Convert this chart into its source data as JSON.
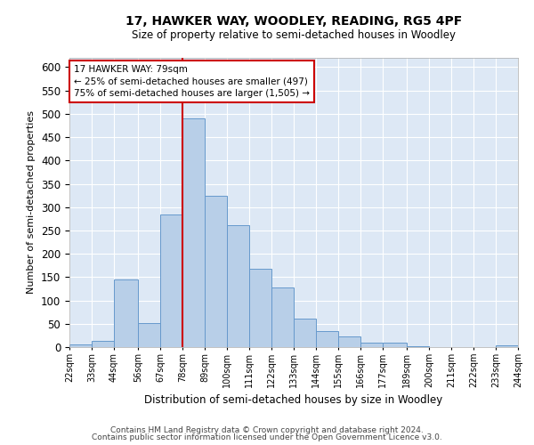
{
  "title": "17, HAWKER WAY, WOODLEY, READING, RG5 4PF",
  "subtitle": "Size of property relative to semi-detached houses in Woodley",
  "xlabel": "Distribution of semi-detached houses by size in Woodley",
  "ylabel": "Number of semi-detached properties",
  "annotation_title": "17 HAWKER WAY: 79sqm",
  "annotation_line1": "← 25% of semi-detached houses are smaller (497)",
  "annotation_line2": "75% of semi-detached houses are larger (1,505) →",
  "property_size": 79,
  "bin_starts": [
    22,
    33,
    44,
    56,
    67,
    78,
    89,
    100,
    111,
    122,
    133,
    144,
    155,
    166,
    177,
    189,
    200,
    211,
    222,
    233
  ],
  "bin_widths": [
    11,
    11,
    12,
    11,
    11,
    11,
    11,
    11,
    11,
    11,
    11,
    11,
    11,
    11,
    12,
    11,
    11,
    11,
    11,
    11
  ],
  "bin_labels": [
    "22sqm",
    "33sqm",
    "44sqm",
    "56sqm",
    "67sqm",
    "78sqm",
    "89sqm",
    "100sqm",
    "111sqm",
    "122sqm",
    "133sqm",
    "144sqm",
    "155sqm",
    "166sqm",
    "177sqm",
    "189sqm",
    "200sqm",
    "211sqm",
    "222sqm",
    "233sqm",
    "244sqm"
  ],
  "bar_heights": [
    5,
    13,
    145,
    52,
    285,
    490,
    325,
    262,
    168,
    127,
    62,
    35,
    23,
    10,
    9,
    1,
    0,
    0,
    0,
    4
  ],
  "bar_color": "#b8cfe8",
  "bar_edge_color": "#6699cc",
  "vline_color": "#cc0000",
  "vline_x": 78,
  "box_color": "#cc0000",
  "background_color": "#dde8f5",
  "ylim": [
    0,
    620
  ],
  "yticks": [
    0,
    50,
    100,
    150,
    200,
    250,
    300,
    350,
    400,
    450,
    500,
    550,
    600
  ],
  "footer1": "Contains HM Land Registry data © Crown copyright and database right 2024.",
  "footer2": "Contains public sector information licensed under the Open Government Licence v3.0."
}
